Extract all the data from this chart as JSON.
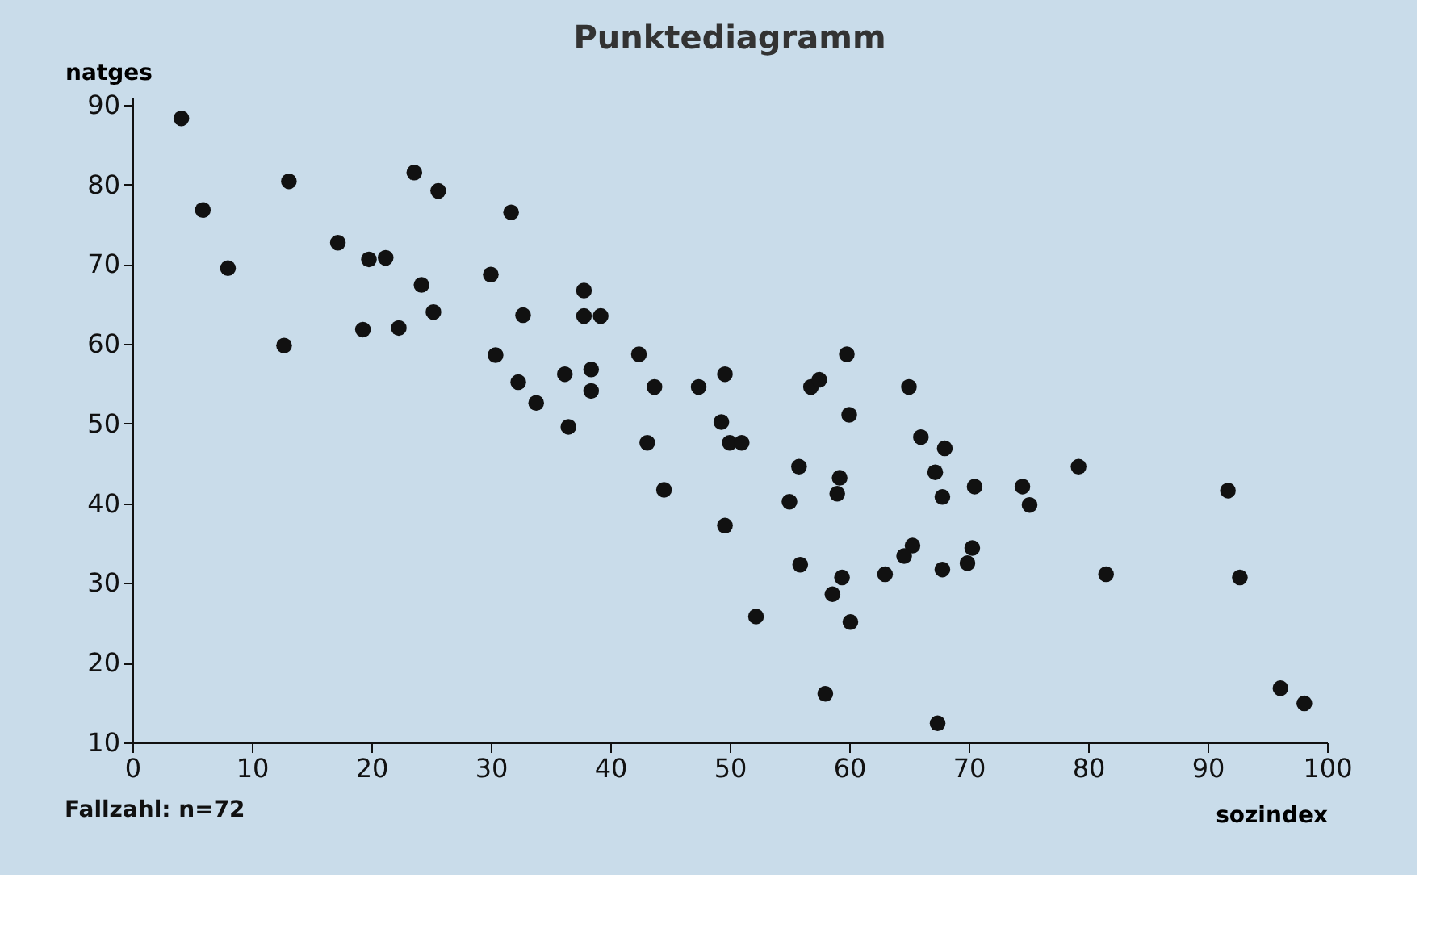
{
  "chart_data": {
    "type": "scatter",
    "title": "Punktediagramm",
    "xlabel": "sozindex",
    "ylabel": "natges",
    "annotations": [
      "Fallzahl: n=72"
    ],
    "xlim": [
      0,
      100
    ],
    "xticks": [
      0,
      10,
      20,
      30,
      40,
      50,
      60,
      70,
      80,
      90,
      100
    ],
    "ylim": [
      10,
      91
    ],
    "yticks": [
      10,
      20,
      30,
      40,
      50,
      60,
      70,
      80,
      90
    ],
    "grid": false,
    "marker": "circle",
    "series": [
      {
        "color": "#111111",
        "x": [
          4.1,
          13.1,
          23.6,
          25.6,
          31.7,
          5.9,
          8.0,
          17.2,
          19.8,
          21.2,
          30.0,
          24.2,
          25.2,
          19.3,
          22.3,
          32.7,
          12.7,
          30.4,
          32.3,
          36.2,
          33.8,
          36.5,
          37.8,
          37.8,
          39.2,
          38.4,
          38.4,
          42.4,
          43.7,
          47.4,
          49.6,
          43.1,
          49.3,
          50.0,
          51.0,
          44.5,
          59.8,
          56.8,
          57.5,
          60.0,
          65.0,
          55.8,
          59.2,
          59.0,
          55.0,
          49.6,
          66.0,
          68.0,
          67.2,
          67.8,
          70.5,
          74.5,
          75.1,
          79.2,
          55.9,
          59.4,
          58.6,
          52.2,
          63.0,
          65.3,
          64.6,
          67.8,
          70.3,
          69.9,
          60.1,
          58.0,
          67.4,
          81.5,
          91.7,
          92.7,
          96.1,
          98.1
        ],
        "values": [
          88.3,
          80.4,
          81.5,
          79.2,
          76.5,
          76.8,
          69.5,
          72.7,
          70.6,
          70.8,
          68.7,
          67.4,
          64.0,
          61.8,
          62.0,
          63.6,
          59.8,
          58.6,
          55.2,
          56.2,
          52.6,
          49.6,
          66.7,
          63.5,
          63.5,
          56.8,
          54.1,
          58.7,
          54.6,
          54.6,
          56.2,
          47.6,
          50.2,
          47.6,
          47.6,
          41.7,
          58.7,
          54.6,
          55.5,
          51.1,
          54.6,
          44.6,
          43.2,
          41.2,
          40.2,
          37.2,
          48.3,
          46.9,
          43.9,
          40.8,
          42.1,
          42.1,
          39.8,
          44.6,
          32.3,
          30.7,
          28.6,
          25.8,
          31.1,
          34.7,
          33.4,
          31.7,
          34.4,
          32.5,
          25.1,
          16.1,
          12.4,
          31.1,
          41.6,
          30.7,
          16.8,
          14.9
        ]
      }
    ]
  }
}
